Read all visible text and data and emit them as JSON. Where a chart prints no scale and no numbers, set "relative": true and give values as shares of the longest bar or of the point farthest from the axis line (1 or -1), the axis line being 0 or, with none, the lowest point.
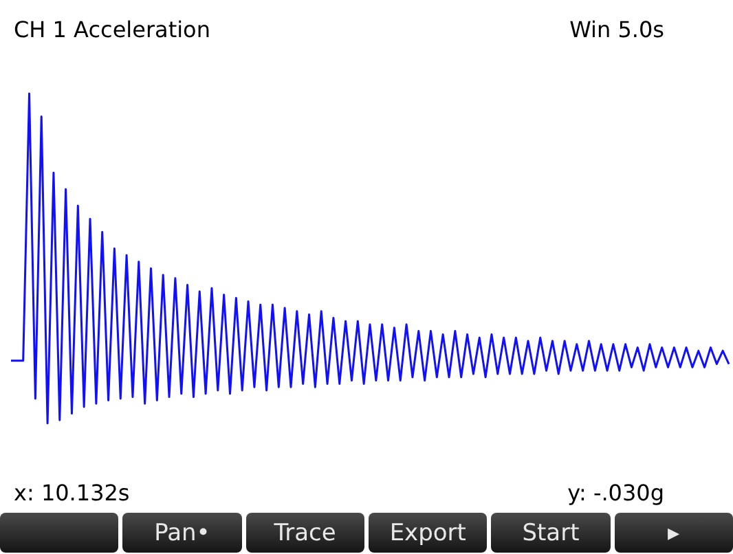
{
  "chart_data": {
    "type": "line",
    "title": "CH 1 Acceleration",
    "relative": true,
    "color": "#1010ff",
    "marker": "none",
    "annotations": [
      "Win 5.0s",
      "x: 10.132s",
      "y: -.030g",
      "Pan•",
      "Trace",
      "Export",
      "Start",
      "▸"
    ],
    "categories": [
      null,
      null,
      null,
      null,
      null,
      null,
      null,
      null,
      null,
      null,
      null,
      null,
      null,
      null,
      null,
      null,
      null,
      null,
      null,
      null,
      null,
      null,
      null,
      null,
      null,
      null,
      null,
      null,
      null,
      null,
      null,
      null,
      null,
      null,
      null,
      null,
      null,
      null,
      null,
      null,
      null,
      null,
      null,
      null,
      null,
      null,
      null,
      null,
      null,
      null,
      null,
      null,
      null,
      null,
      null,
      null,
      null,
      null,
      null,
      null,
      null,
      null,
      null,
      null,
      null,
      null,
      null,
      null,
      null,
      null,
      null,
      null,
      null,
      null,
      null,
      null,
      null,
      null,
      null,
      null,
      null,
      null,
      null,
      null,
      null,
      null,
      null,
      null,
      null,
      null,
      null,
      null,
      null,
      null,
      null,
      null,
      null,
      null,
      null,
      null,
      null,
      null,
      null,
      null,
      null,
      null,
      null,
      null,
      null,
      null,
      null,
      null,
      null,
      null,
      null,
      null,
      null,
      null,
      null
    ],
    "values": [
      0.19,
      0.19,
      0.19,
      1.0,
      0.075,
      0.93,
      0,
      0.76,
      0.01,
      0.71,
      0.03,
      0.66,
      0.05,
      0.62,
      0.06,
      0.58,
      0.07,
      0.53,
      0.075,
      0.51,
      0.08,
      0.49,
      0.06,
      0.47,
      0.07,
      0.45,
      0.08,
      0.44,
      0.09,
      0.42,
      0.08,
      0.4,
      0.09,
      0.41,
      0.1,
      0.39,
      0.09,
      0.38,
      0.1,
      0.37,
      0.11,
      0.36,
      0.1,
      0.36,
      0.11,
      0.35,
      0.11,
      0.34,
      0.12,
      0.33,
      0.11,
      0.34,
      0.12,
      0.32,
      0.12,
      0.31,
      0.13,
      0.31,
      0.12,
      0.3,
      0.13,
      0.3,
      0.13,
      0.29,
      0.13,
      0.3,
      0.14,
      0.28,
      0.13,
      0.28,
      0.14,
      0.27,
      0.14,
      0.28,
      0.14,
      0.27,
      0.15,
      0.26,
      0.14,
      0.27,
      0.15,
      0.26,
      0.15,
      0.26,
      0.15,
      0.25,
      0.15,
      0.26,
      0.16,
      0.25,
      0.15,
      0.25,
      0.16,
      0.24,
      0.16,
      0.25,
      0.16,
      0.24,
      0.16,
      0.24,
      0.16,
      0.24,
      0.17,
      0.23,
      0.16,
      0.24,
      0.17,
      0.23,
      0.17,
      0.23,
      0.17,
      0.23,
      0.17,
      0.22,
      0.17,
      0.23,
      0.18,
      0.22,
      0.18
    ]
  }
}
